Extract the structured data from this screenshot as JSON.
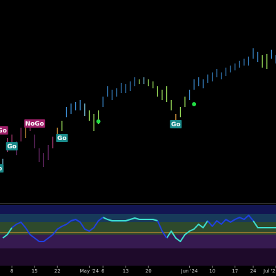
{
  "chart_data": {
    "type": "hilo",
    "categories": [
      null,
      null,
      "8",
      null,
      null,
      null,
      null,
      "15",
      null,
      null,
      null,
      null,
      "22",
      null,
      null,
      null,
      null,
      null,
      null,
      "May '24",
      null,
      null,
      "6",
      null,
      null,
      null,
      null,
      "13",
      null,
      null,
      null,
      null,
      "20",
      null,
      null,
      null,
      null,
      null,
      null,
      null,
      null,
      "Jun '24",
      null,
      null,
      null,
      null,
      "10",
      null,
      null,
      null,
      null,
      "17",
      null,
      null,
      null,
      "24",
      null,
      null,
      null,
      null,
      "Jul '2"
    ],
    "ylim": [
      0,
      290
    ],
    "high": [
      60,
      90,
      95,
      85,
      105,
      110,
      115,
      95,
      75,
      68,
      80,
      92,
      105,
      115,
      135,
      140,
      142,
      145,
      140,
      130,
      125,
      130,
      150,
      165,
      160,
      162,
      170,
      168,
      172,
      178,
      175,
      178,
      175,
      172,
      165,
      160,
      165,
      145,
      125,
      135,
      150,
      160,
      175,
      178,
      175,
      182,
      185,
      190,
      185,
      192,
      195,
      198,
      202,
      205,
      208,
      220,
      215,
      210,
      212,
      218,
      210
    ],
    "low": [
      40,
      70,
      75,
      65,
      85,
      90,
      100,
      75,
      55,
      48,
      58,
      75,
      90,
      100,
      120,
      125,
      130,
      130,
      122,
      115,
      100,
      110,
      135,
      150,
      145,
      150,
      155,
      155,
      158,
      165,
      168,
      168,
      165,
      162,
      150,
      145,
      142,
      130,
      105,
      120,
      135,
      145,
      160,
      165,
      162,
      170,
      172,
      178,
      175,
      180,
      185,
      188,
      192,
      195,
      195,
      205,
      200,
      192,
      190,
      205,
      198
    ],
    "colors": [
      "#7ec8e3",
      "#c04080",
      "#c04080",
      "#7a2f7a",
      "#c04080",
      "#e0a040",
      "#c04080",
      "#7a2f7a",
      "#7a2f7a",
      "#7a2f7a",
      "#7a2f7a",
      "#c04080",
      "#e0a040",
      "#9be05a",
      "#3d8fd6",
      "#3d8fd6",
      "#3d8fd6",
      "#3d8fd6",
      "#7ec8e3",
      "#9be05a",
      "#9be05a",
      "#9be05a",
      "#3d8fd6",
      "#3d8fd6",
      "#3d8fd6",
      "#3d8fd6",
      "#3d8fd6",
      "#3d8fd6",
      "#3d8fd6",
      "#3d8fd6",
      "#9be05a",
      "#7ec8e3",
      "#9be05a",
      "#9be05a",
      "#9be05a",
      "#9be05a",
      "#9be05a",
      "#9be05a",
      "#e0a040",
      "#9be05a",
      "#9be05a",
      "#3d8fd6",
      "#3d8fd6",
      "#3d8fd6",
      "#3d8fd6",
      "#3d8fd6",
      "#3d8fd6",
      "#3d8fd6",
      "#3d8fd6",
      "#3d8fd6",
      "#3d8fd6",
      "#3d8fd6",
      "#3d8fd6",
      "#3d8fd6",
      "#3d8fd6",
      "#3d8fd6",
      "#3d8fd6",
      "#9be05a",
      "#9be05a",
      "#3d8fd6",
      "#3d8fd6"
    ],
    "annotations": [
      {
        "text": "oGo",
        "category": 0,
        "value": 101,
        "color": "#a0206a"
      },
      {
        "text": "o",
        "category": 0,
        "value": 46,
        "color": "#1a8a8a"
      },
      {
        "text": "Go",
        "category": 2,
        "value": 78,
        "color": "#1a8a8a"
      },
      {
        "text": "NoGo",
        "category": 7,
        "value": 111,
        "color": "#a0206a"
      },
      {
        "text": "Go",
        "category": 13,
        "value": 90,
        "color": "#1a8a8a"
      },
      {
        "text": "Go",
        "category": 38,
        "value": 110,
        "color": "#1a8a8a"
      }
    ],
    "dots": {
      "color": "#22dd44",
      "categories": [
        21,
        42
      ],
      "values": [
        114,
        139
      ]
    },
    "oscillator": {
      "ylim": [
        0,
        88
      ],
      "bands": [
        {
          "from": 75,
          "to": 88,
          "color": "#121552"
        },
        {
          "from": 63,
          "to": 75,
          "color": "#173a5a"
        },
        {
          "from": 45,
          "to": 63,
          "color": "#2e4a2c"
        },
        {
          "from": 25,
          "to": 45,
          "color": "#361a50"
        },
        {
          "from": 0,
          "to": 25,
          "color": "#1e0a2a"
        }
      ],
      "level": {
        "value": 48,
        "color": "#e09a30"
      },
      "series": [
        {
          "color": "#3ee0d0",
          "values": [
            40,
            45,
            55,
            null,
            null,
            null,
            null,
            null,
            null,
            null,
            null,
            null,
            null,
            null,
            null,
            null,
            null,
            null,
            null,
            null,
            null,
            null,
            70,
            67,
            65,
            65,
            65,
            65,
            67,
            69,
            67,
            67,
            67,
            67,
            65,
            null,
            40,
            50,
            40,
            35,
            45,
            50,
            53,
            60,
            55,
            65,
            null,
            null,
            null,
            null,
            null,
            null,
            null,
            null,
            null,
            65,
            55,
            55,
            55,
            55,
            55
          ]
        },
        {
          "color": "#2040e0",
          "values": [
            null,
            null,
            55,
            60,
            63,
            55,
            45,
            40,
            35,
            35,
            40,
            45,
            53,
            57,
            60,
            65,
            67,
            63,
            53,
            50,
            55,
            65,
            70,
            null,
            null,
            null,
            null,
            null,
            null,
            null,
            null,
            null,
            null,
            null,
            65,
            50,
            40,
            null,
            null,
            null,
            null,
            null,
            null,
            null,
            null,
            65,
            57,
            65,
            60,
            67,
            63,
            67,
            70,
            67,
            73,
            65,
            null,
            null,
            null,
            null,
            null
          ]
        }
      ]
    }
  }
}
